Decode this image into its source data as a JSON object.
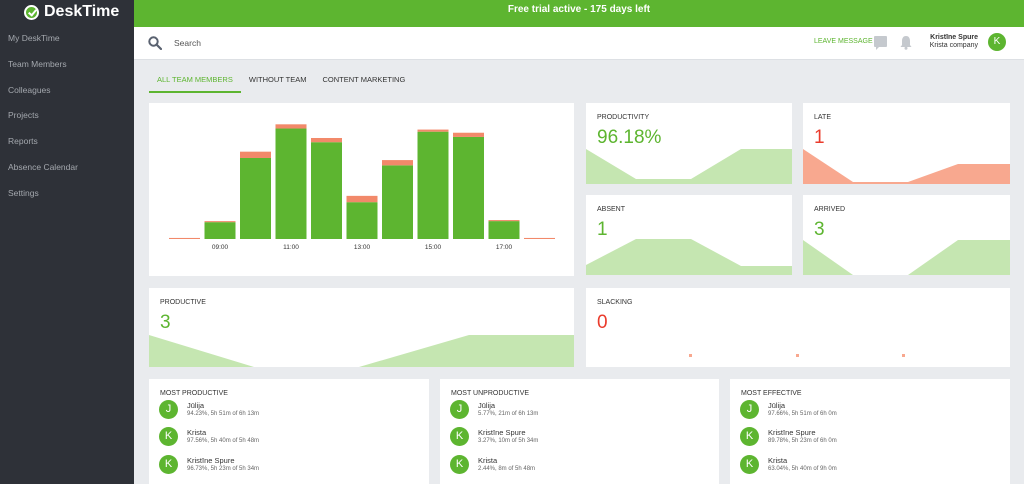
{
  "app": {
    "logo": "DeskTime"
  },
  "banner": {
    "text": "Free trial active - 175 days left"
  },
  "sidebar": {
    "items": [
      {
        "label": "My DeskTime"
      },
      {
        "label": "Team Members"
      },
      {
        "label": "Colleagues"
      },
      {
        "label": "Projects"
      },
      {
        "label": "Reports"
      },
      {
        "label": "Absence Calendar"
      },
      {
        "label": "Settings"
      }
    ]
  },
  "topbar": {
    "search_placeholder": "Search",
    "leave_message": "LEAVE MESSAGE",
    "user_name": "Kristīne Spure",
    "user_company": "Krista company",
    "user_initial": "K"
  },
  "tabs": [
    {
      "label": "ALL TEAM MEMBERS",
      "active": true
    },
    {
      "label": "WITHOUT TEAM",
      "active": false
    },
    {
      "label": "CONTENT MARKETING",
      "active": false
    }
  ],
  "colors": {
    "productive": "#5db530",
    "unproductive": "#f2896a",
    "late_fill": "#f8a88f",
    "spark_fill": "#c5e6b1",
    "accent_red": "#ea3b2c"
  },
  "chart_data": {
    "type": "bar",
    "categories": [
      "08:00",
      "09:00",
      "10:00",
      "11:00",
      "12:00",
      "13:00",
      "14:00",
      "15:00",
      "16:00",
      "17:00",
      "18:00"
    ],
    "tick_labels": [
      "09:00",
      "11:00",
      "13:00",
      "15:00",
      "17:00"
    ],
    "series": [
      {
        "key": "productive",
        "values": [
          0,
          16,
          77,
          105,
          92,
          35,
          70,
          102,
          97,
          17,
          0
        ]
      },
      {
        "key": "unproductive",
        "values": [
          1,
          1,
          6,
          4,
          4,
          6,
          5,
          2,
          4,
          1,
          1
        ]
      }
    ],
    "ylim": [
      0,
      115
    ],
    "grid": false,
    "legend": "none"
  },
  "stats": {
    "productivity": {
      "label": "PRODUCTIVITY",
      "value": "96.18%"
    },
    "late": {
      "label": "LATE",
      "value": "1"
    },
    "absent": {
      "label": "ABSENT",
      "value": "1"
    },
    "arrived": {
      "label": "ARRIVED",
      "value": "3"
    },
    "productive": {
      "label": "PRODUCTIVE",
      "value": "3"
    },
    "slacking": {
      "label": "SLACKING",
      "value": "0"
    }
  },
  "lists": {
    "most_productive": {
      "title": "MOST PRODUCTIVE",
      "people": [
        {
          "initial": "J",
          "name": "Jūlija",
          "stat": "94.23%, 5h 51m of 6h 13m"
        },
        {
          "initial": "K",
          "name": "Krista",
          "stat": "97.56%, 5h 40m of 5h 48m"
        },
        {
          "initial": "K",
          "name": "Kristīne Spure",
          "stat": "96.73%, 5h 23m of 5h 34m"
        }
      ]
    },
    "most_unproductive": {
      "title": "MOST UNPRODUCTIVE",
      "people": [
        {
          "initial": "J",
          "name": "Jūlija",
          "stat": "5.77%, 21m of 6h 13m"
        },
        {
          "initial": "K",
          "name": "Kristīne Spure",
          "stat": "3.27%, 10m of 5h 34m"
        },
        {
          "initial": "K",
          "name": "Krista",
          "stat": "2.44%, 8m of 5h 48m"
        }
      ]
    },
    "most_effective": {
      "title": "MOST EFFECTIVE",
      "people": [
        {
          "initial": "J",
          "name": "Jūlija",
          "stat": "97.66%, 5h 51m of 6h 0m"
        },
        {
          "initial": "K",
          "name": "Kristīne Spure",
          "stat": "89.78%, 5h 23m of 6h 0m"
        },
        {
          "initial": "K",
          "name": "Krista",
          "stat": "63.04%, 5h 40m of 9h 0m"
        }
      ]
    }
  }
}
